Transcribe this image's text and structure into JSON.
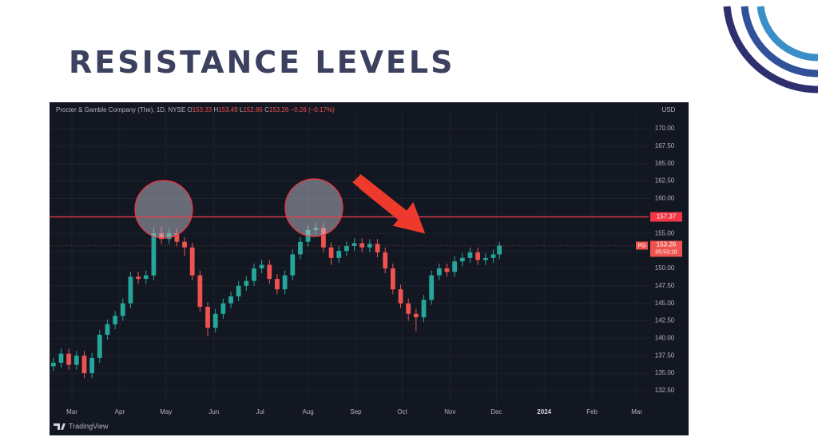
{
  "header": {
    "title": "RESISTANCE LEVELS"
  },
  "chart_data": {
    "type": "candlestick",
    "symbol": "Procter & Gamble Company (The), 1D, NYSE",
    "quote": [
      {
        "label": "O",
        "value": 153.33
      },
      {
        "label": "H",
        "value": 153.49
      },
      {
        "label": "L",
        "value": 152.86
      },
      {
        "label": "C",
        "value": 153.26
      }
    ],
    "change": {
      "value": -0.26,
      "label": "−0.26"
    },
    "change_pct": {
      "value": -0.17,
      "label": "(−0.17%)"
    },
    "currency": "USD",
    "x": [
      -12,
      -7,
      -2,
      3,
      8,
      13,
      18,
      23,
      28,
      33,
      38,
      43,
      48,
      53,
      58,
      63,
      68,
      73,
      78,
      83,
      88,
      93,
      98,
      103,
      108,
      113,
      118,
      123,
      128,
      133,
      138,
      143,
      148,
      153,
      158,
      163,
      168,
      173,
      178,
      183,
      188,
      193,
      198,
      203,
      208,
      213,
      218,
      223,
      228,
      233,
      238,
      243,
      248,
      253,
      258,
      263,
      268,
      273,
      277
    ],
    "open": [
      136.0,
      136.5,
      137.8,
      136.2,
      137.5,
      135.0,
      137.2,
      140.5,
      142.0,
      143.2,
      145.0,
      148.8,
      148.5,
      149.0,
      155.0,
      154.2,
      155.0,
      153.8,
      153.0,
      149.0,
      144.5,
      141.5,
      143.5,
      145.0,
      146.0,
      147.5,
      148.2,
      150.0,
      150.5,
      148.5,
      147.0,
      149.0,
      152.0,
      153.8,
      155.5,
      155.8,
      153.0,
      151.5,
      152.5,
      153.2,
      153.6,
      153.0,
      153.5,
      152.3,
      150.0,
      147.0,
      145.0,
      143.5,
      143.0,
      145.5,
      149.0,
      150.0,
      149.5,
      151.0,
      151.5,
      152.3,
      151.2,
      151.5,
      152.0
    ],
    "high": [
      137.2,
      138.5,
      138.5,
      138.2,
      138.2,
      137.9,
      141.2,
      142.7,
      143.9,
      145.7,
      149.5,
      149.5,
      149.7,
      155.9,
      156.0,
      155.7,
      155.7,
      154.5,
      153.7,
      149.7,
      145.2,
      144.2,
      145.7,
      146.7,
      148.2,
      148.9,
      150.7,
      151.2,
      151.2,
      149.2,
      149.7,
      152.7,
      154.5,
      156.2,
      156.6,
      156.5,
      153.7,
      153.2,
      153.9,
      154.3,
      154.3,
      154.2,
      154.2,
      153.0,
      150.7,
      147.7,
      145.7,
      144.2,
      146.2,
      149.7,
      150.7,
      150.7,
      151.7,
      152.2,
      153.0,
      153.0,
      152.2,
      152.7,
      153.8
    ],
    "low": [
      135.3,
      135.8,
      135.5,
      135.5,
      134.3,
      134.3,
      136.5,
      139.8,
      141.3,
      142.5,
      144.3,
      147.8,
      147.8,
      148.3,
      153.5,
      153.5,
      153.1,
      151.8,
      148.3,
      143.8,
      140.3,
      140.8,
      142.8,
      144.3,
      145.3,
      146.8,
      147.5,
      149.3,
      147.8,
      146.3,
      146.3,
      148.3,
      151.3,
      153.1,
      154.8,
      152.3,
      150.5,
      150.8,
      151.8,
      152.5,
      152.3,
      152.3,
      151.6,
      149.3,
      146.3,
      144.3,
      142.5,
      141.0,
      142.3,
      144.8,
      148.3,
      148.8,
      148.8,
      150.3,
      150.8,
      150.5,
      150.5,
      150.8,
      151.3
    ],
    "close": [
      136.5,
      137.8,
      136.2,
      137.5,
      135.0,
      137.2,
      140.5,
      142.0,
      143.2,
      145.0,
      148.8,
      148.5,
      149.0,
      155.0,
      154.2,
      155.0,
      153.8,
      153.0,
      149.0,
      144.5,
      141.5,
      143.5,
      145.0,
      146.0,
      147.5,
      148.2,
      150.0,
      150.5,
      148.5,
      147.0,
      149.0,
      152.0,
      153.8,
      155.5,
      155.8,
      153.0,
      151.5,
      152.5,
      153.2,
      153.6,
      153.0,
      153.5,
      152.3,
      150.0,
      147.0,
      145.0,
      143.5,
      143.0,
      145.5,
      149.0,
      150.0,
      149.5,
      151.0,
      151.5,
      152.3,
      151.2,
      151.5,
      152.0,
      153.26
    ],
    "up_color": "#26a69a",
    "down_color": "#ef5350",
    "ylim": [
      130.67,
      171.83
    ],
    "yticks": [
      {
        "value": 132.5,
        "label": "132.50"
      },
      {
        "value": 135,
        "label": "135.00"
      },
      {
        "value": 137.5,
        "label": "137.50"
      },
      {
        "value": 140,
        "label": "140.00"
      },
      {
        "value": 142.5,
        "label": "142.50"
      },
      {
        "value": 145,
        "label": "145.00"
      },
      {
        "value": 147.5,
        "label": "147.50"
      },
      {
        "value": 150,
        "label": "150.00"
      },
      {
        "value": 152.5,
        "label": "152.50"
      },
      {
        "value": 155,
        "label": "155.00"
      },
      {
        "value": 157.5,
        "label": "157.50"
      },
      {
        "value": 160,
        "label": "160.00"
      },
      {
        "value": 162.5,
        "label": "162.50"
      },
      {
        "value": 165,
        "label": "165.00"
      },
      {
        "value": 167.5,
        "label": "167.50"
      },
      {
        "value": 170,
        "label": "170.00"
      }
    ],
    "xlim": [
      -14.5,
      373.7
    ],
    "xticks": [
      {
        "value": 0,
        "label": "Mar"
      },
      {
        "value": 31,
        "label": "Apr"
      },
      {
        "value": 61,
        "label": "May"
      },
      {
        "value": 92,
        "label": "Jun"
      },
      {
        "value": 122,
        "label": "Jul"
      },
      {
        "value": 153,
        "label": "Aug"
      },
      {
        "value": 184,
        "label": "Sep"
      },
      {
        "value": 214,
        "label": "Oct"
      },
      {
        "value": 245,
        "label": "Nov"
      },
      {
        "value": 275,
        "label": "Dec"
      },
      {
        "value": 306,
        "label": "2024"
      },
      {
        "value": 337,
        "label": "Feb"
      },
      {
        "value": 366,
        "label": "Mar"
      }
    ],
    "grid": true,
    "resistance": 157.37,
    "resistance_color": "#f23645",
    "last_price": {
      "ticker": "PG",
      "value": 153.26,
      "countdown": "05:53:18"
    },
    "watermark": "TradingView"
  }
}
